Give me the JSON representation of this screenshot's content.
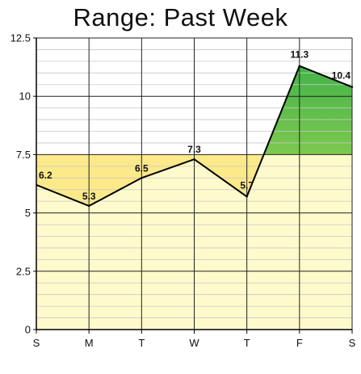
{
  "chart_data": {
    "type": "line",
    "title": "Range: Past Week",
    "categories": [
      "S",
      "M",
      "T",
      "W",
      "T",
      "F",
      "S"
    ],
    "values": [
      6.2,
      5.3,
      6.5,
      7.3,
      5.7,
      11.3,
      10.4
    ],
    "data_labels": [
      "6.2",
      "5.3",
      "6.5",
      "7.3",
      "5.7",
      "11.3",
      "10.4"
    ],
    "ylim": [
      0,
      12.5
    ],
    "y_ticks": [
      0,
      2.5,
      5,
      7.5,
      10,
      12.5
    ],
    "y_tick_labels": [
      "0",
      "2.5",
      "5",
      "7.5",
      "10",
      "12.5"
    ],
    "threshold": 7.5,
    "grid": true,
    "legend": "none",
    "colors": {
      "line": "#000000",
      "below_band": "#fff6a0",
      "below_fill": "#fbe98a",
      "above_fill_top": "#44b34a",
      "above_fill_bottom": "#f2f26a",
      "minor_grid": "#c8c8c8",
      "major_grid": "#222222"
    }
  }
}
